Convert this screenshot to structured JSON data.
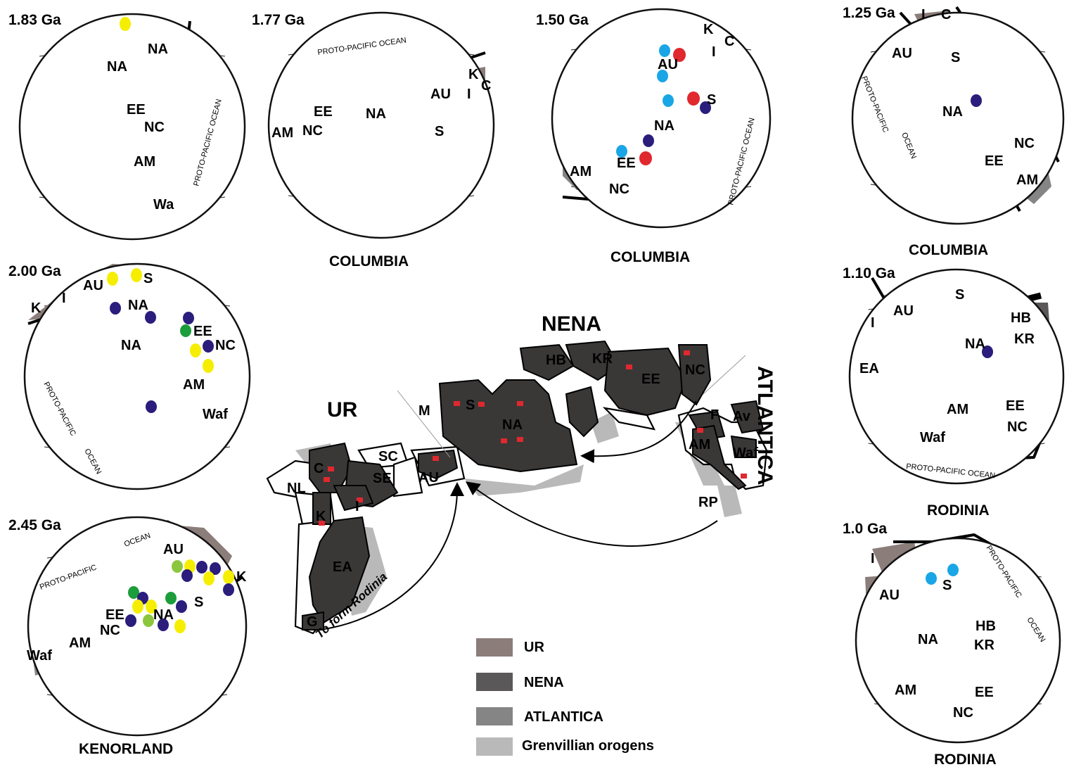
{
  "ages": {
    "a183": "1.83 Ga",
    "a177": "1.77 Ga",
    "a150": "1.50 Ga",
    "a125": "1.25 Ga",
    "a200": "2.00 Ga",
    "a110": "1.10 Ga",
    "a245": "2.45 Ga",
    "a100": "1.0 Ga"
  },
  "captions": {
    "columbia": "COLUMBIA",
    "rodinia": "RODINIA",
    "kenorland": "KENORLAND"
  },
  "oceans": {
    "proto_pacific_ocean": "PROTO-PACIFIC OCEAN",
    "proto_pacific": "PROTO-PACIFIC",
    "ocean": "OCEAN"
  },
  "continents": {
    "NA": "NA",
    "AU": "AU",
    "EE": "EE",
    "NC": "NC",
    "AM": "AM",
    "Waf": "Waf",
    "Wa": "Wa",
    "S": "S",
    "K": "K",
    "I": "I",
    "C": "C",
    "HB": "HB",
    "KR": "KR",
    "EA": "EA",
    "NL": "NL",
    "SC": "SC",
    "SE": "SE",
    "M": "M",
    "G": "G",
    "F": "F",
    "Av": "Av",
    "RP": "RP"
  },
  "central": {
    "nena": "NENA",
    "ur": "UR",
    "atlantica": "ATLANTICA",
    "to_form_rodinia": "To form Rodinia"
  },
  "legend": [
    {
      "label": "UR",
      "color": "#8b7d79"
    },
    {
      "label": "NENA",
      "color": "#5b5859"
    },
    {
      "label": "ATLANTICA",
      "color": "#858585"
    },
    {
      "label": "Grenvillian orogens",
      "color": "#b9b9b9"
    }
  ],
  "marker_colors": {
    "yellow": "#f6ee00",
    "navy": "#2a1d7c",
    "red": "#e0282e",
    "cyan": "#1aa6e6",
    "green": "#1b9d3b",
    "lightgreen": "#8cc63e"
  }
}
